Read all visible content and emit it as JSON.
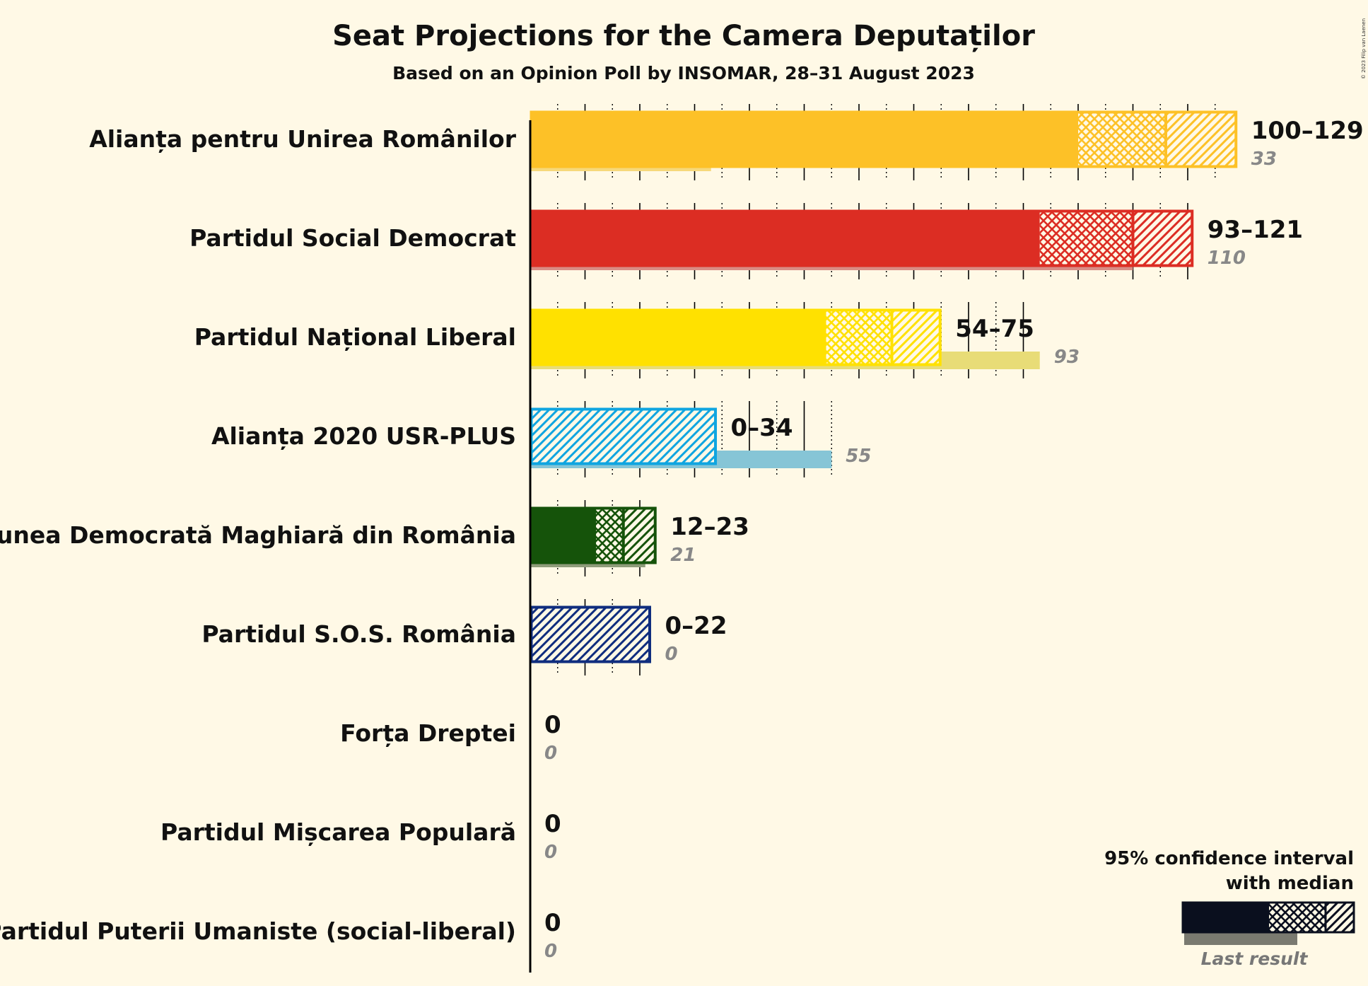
{
  "title": "Seat Projections for the Camera Deputaților",
  "subtitle": "Based on an Opinion Poll by INSOMAR, 28–31 August 2023",
  "copyright": "© 2023 Filip van Laenen",
  "legend": {
    "title_line1": "95% confidence interval",
    "title_line2": "with median",
    "last_result_label": "Last result"
  },
  "chart_data": {
    "type": "bar",
    "orientation": "horizontal",
    "title": "Seat Projections for the Camera Deputaților",
    "subtitle": "Based on an Opinion Poll by INSOMAR, 28–31 August 2023",
    "xlim": [
      0,
      130
    ],
    "grid": "vertical lines every 5 seats (solid every 10, dotted between)",
    "legend_position": "bottom-right",
    "parties": [
      {
        "name": "Alianța pentru Unirea Românilor",
        "range_label": "100–129",
        "low": 100,
        "median": 116,
        "high": 129,
        "last_result": 33,
        "last_label": "33",
        "color": "#fdc127",
        "last_color": "#f6d87a"
      },
      {
        "name": "Partidul Social Democrat",
        "range_label": "93–121",
        "low": 93,
        "median": 110,
        "high": 121,
        "last_result": 110,
        "last_label": "110",
        "color": "#dc2d23",
        "last_color": "#d98d85"
      },
      {
        "name": "Partidul Național Liberal",
        "range_label": "54–75",
        "low": 54,
        "median": 66,
        "high": 75,
        "last_result": 93,
        "last_label": "93",
        "color": "#ffe100",
        "last_color": "#e8dc77"
      },
      {
        "name": "Alianța 2020 USR-PLUS",
        "range_label": "0–34",
        "low": 0,
        "median": 0,
        "high": 34,
        "last_result": 55,
        "last_label": "55",
        "color": "#0fa5e0",
        "last_color": "#86c5d6"
      },
      {
        "name": "Uniunea Democrată Maghiară din România",
        "range_label": "12–23",
        "low": 12,
        "median": 17,
        "high": 23,
        "last_result": 21,
        "last_label": "21",
        "color": "#15530a",
        "last_color": "#8f9c7a"
      },
      {
        "name": "Partidul S.O.S. România",
        "range_label": "0–22",
        "low": 0,
        "median": 0,
        "high": 22,
        "last_result": 0,
        "last_label": "0",
        "color": "#0f2d7e",
        "last_color": "#8a90a8"
      },
      {
        "name": "Forța Dreptei",
        "range_label": "0",
        "low": 0,
        "median": 0,
        "high": 0,
        "last_result": 0,
        "last_label": "0",
        "color": "#333333",
        "last_color": "#999999"
      },
      {
        "name": "Partidul Mișcarea Populară",
        "range_label": "0",
        "low": 0,
        "median": 0,
        "high": 0,
        "last_result": 0,
        "last_label": "0",
        "color": "#333333",
        "last_color": "#999999"
      },
      {
        "name": "Partidul Puterii Umaniste (social-liberal)",
        "range_label": "0",
        "low": 0,
        "median": 0,
        "high": 0,
        "last_result": 0,
        "last_label": "0",
        "color": "#333333",
        "last_color": "#999999"
      }
    ]
  }
}
